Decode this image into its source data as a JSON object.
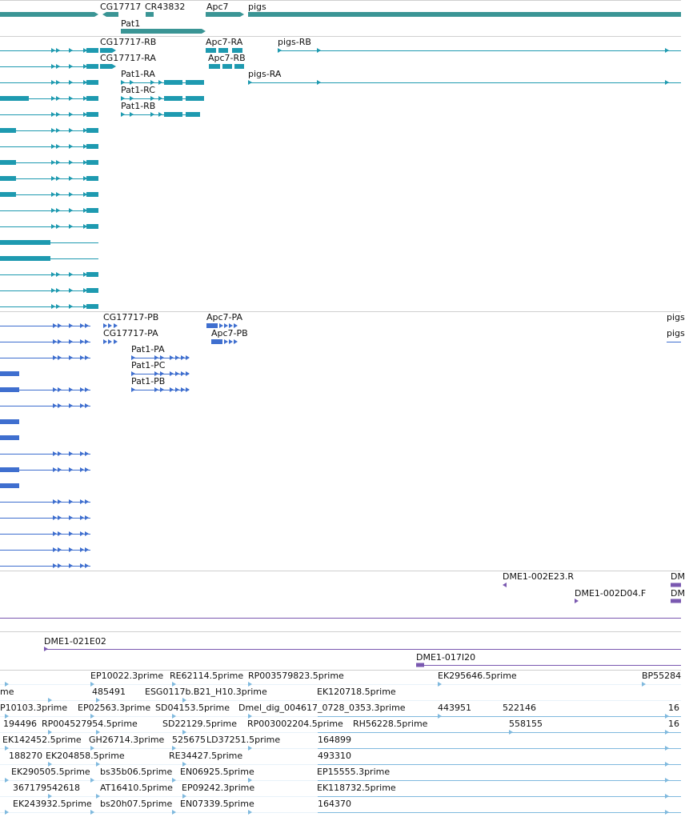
{
  "colors": {
    "gene": "#3a9595",
    "mrna": "#1e9ab0",
    "protein": "#3f6fcf",
    "clone": "#7a58b0",
    "est": "#7fb9de",
    "divider": "#cfcfcf",
    "text": "#111111"
  },
  "gene_track": {
    "labels": [
      "CG17717",
      "CR43832",
      "Apc7",
      "pigs",
      "Pat1"
    ]
  },
  "mrna_track": {
    "labels": [
      "CG17717-RB",
      "Apc7-RA",
      "pigs-RB",
      "CG17717-RA",
      "Apc7-RB",
      "Pat1-RA",
      "pigs-RA",
      "Pat1-RC",
      "Pat1-RB"
    ]
  },
  "protein_track": {
    "labels": [
      "CG17717-PB",
      "Apc7-PA",
      "pigs",
      "CG17717-PA",
      "Apc7-PB",
      "pigs",
      "Pat1-PA",
      "Pat1-PC",
      "Pat1-PB"
    ]
  },
  "clone_track_1": {
    "labels": [
      "DME1-002E23.R",
      "DM",
      "DME1-002D04.F",
      "DM"
    ]
  },
  "clone_track_2": {
    "labels": [
      "DME1-021E02",
      "DME1-017I20"
    ]
  },
  "est_track": {
    "labels": [
      "EP10022.3prime",
      "RE62114.5prime",
      "RP003579823.5prime",
      "EK295646.5prime",
      "BP55284",
      "me",
      "485491",
      "ESG0117b.B21_H10.3prime",
      "EK120718.5prime",
      "P10103.3prime",
      "EP02563.3prime",
      "SD04153.5prime",
      "Dmel_dig_004617_0728_0353.3prime",
      "443951",
      "522146",
      "16",
      "194496",
      "RP004527954.5prime",
      "SD22129.5prime",
      "RP003002204.5prime",
      "RH56228.5prime",
      "558155",
      "16",
      "EK142452.5prime",
      "GH26714.3prime",
      "525675",
      "LD37251.5prime",
      "164899",
      "188270",
      "EK204858.5prime",
      "RE34427.5prime",
      "493310",
      "EK290505.5prime",
      "bs35b06.5prime",
      "EN06925.5prime",
      "EP15555.3prime",
      "367179542618",
      "AT16410.5prime",
      "EP09242.3prime",
      "EK118732.5prime",
      "EK243932.5prime",
      "bs20h07.5prime",
      "EN07339.5prime",
      "164370"
    ]
  }
}
